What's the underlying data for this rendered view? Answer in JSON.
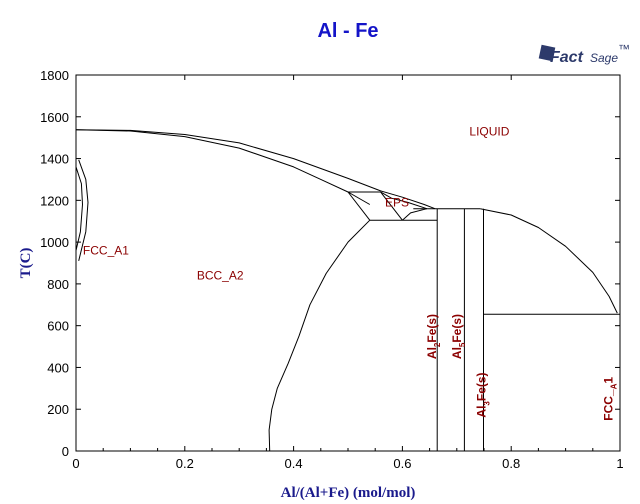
{
  "chart_data": {
    "type": "line",
    "title": "Al - Fe",
    "xlabel": "Al/(Al+Fe) (mol/mol)",
    "ylabel": "T(C)",
    "xlim": [
      0,
      1
    ],
    "ylim": [
      0,
      1800
    ],
    "x_ticks": [
      0,
      0.2,
      0.4,
      0.6,
      0.8,
      1
    ],
    "x_tick_labels": [
      "0",
      "0.2",
      "0.4",
      "0.6",
      "0.8",
      "1"
    ],
    "y_ticks": [
      0,
      200,
      400,
      600,
      800,
      1000,
      1200,
      1400,
      1600,
      1800
    ],
    "y_tick_labels": [
      "0",
      "200",
      "400",
      "600",
      "800",
      "1000",
      "1200",
      "1400",
      "1600",
      "1800"
    ],
    "grid": false,
    "line_color": "#000000",
    "label_color": "#8b0000",
    "region_labels": [
      {
        "text": "LIQUID",
        "x": 0.76,
        "y": 1510
      },
      {
        "text": "FCC_A1",
        "x": 0.055,
        "y": 940
      },
      {
        "text": "BCC_A2",
        "x": 0.265,
        "y": 820
      },
      {
        "text": "EPS",
        "x": 0.59,
        "y": 1170
      }
    ],
    "phase_labels": [
      {
        "main": "Al",
        "sub": "2",
        "tail": "Fe(s)",
        "x": 0.662,
        "y": 440
      },
      {
        "main": "Al",
        "sub": "5",
        "tail": "Fe(s)",
        "x": 0.708,
        "y": 440
      },
      {
        "main": "Al",
        "sub": "3",
        "tail": "Fe(s)",
        "x": 0.753,
        "y": 160
      },
      {
        "main": "FCC_",
        "sub": "A",
        "tail": "1",
        "x": 0.986,
        "y": 145
      }
    ],
    "series": [
      {
        "points": [
          [
            0,
            1538
          ],
          [
            0.1,
            1535
          ],
          [
            0.2,
            1515
          ],
          [
            0.3,
            1475
          ],
          [
            0.4,
            1400
          ],
          [
            0.5,
            1305
          ],
          [
            0.56,
            1245
          ],
          [
            0.6,
            1215
          ],
          [
            0.64,
            1180
          ],
          [
            0.66,
            1160
          ]
        ]
      },
      {
        "points": [
          [
            0,
            1538
          ],
          [
            0.1,
            1532
          ],
          [
            0.2,
            1505
          ],
          [
            0.3,
            1450
          ],
          [
            0.4,
            1360
          ],
          [
            0.45,
            1300
          ],
          [
            0.5,
            1240
          ],
          [
            0.54,
            1180
          ]
        ]
      },
      {
        "points": [
          [
            0.005,
            1394
          ],
          [
            0.018,
            1300
          ],
          [
            0.022,
            1190
          ],
          [
            0.018,
            1050
          ],
          [
            0.005,
            910
          ]
        ]
      },
      {
        "points": [
          [
            0,
            1360
          ],
          [
            0.01,
            1280
          ],
          [
            0.012,
            1180
          ],
          [
            0.008,
            1050
          ],
          [
            0,
            960
          ]
        ]
      },
      {
        "points": [
          [
            0.5,
            1240
          ],
          [
            0.56,
            1240
          ]
        ]
      },
      {
        "points": [
          [
            0.5,
            1240
          ],
          [
            0.54,
            1105
          ]
        ]
      },
      {
        "points": [
          [
            0.56,
            1240
          ],
          [
            0.58,
            1210
          ],
          [
            0.61,
            1190
          ],
          [
            0.645,
            1160
          ]
        ]
      },
      {
        "points": [
          [
            0.56,
            1240
          ],
          [
            0.6,
            1105
          ]
        ]
      },
      {
        "points": [
          [
            0.6,
            1105
          ],
          [
            0.615,
            1140
          ],
          [
            0.645,
            1160
          ]
        ]
      },
      {
        "points": [
          [
            0.54,
            1105
          ],
          [
            0.664,
            1105
          ]
        ]
      },
      {
        "points": [
          [
            0.62,
            1160
          ],
          [
            0.743,
            1160
          ]
        ]
      },
      {
        "points": [
          [
            0.664,
            1160
          ],
          [
            0.664,
            0
          ]
        ]
      },
      {
        "points": [
          [
            0.714,
            1160
          ],
          [
            0.714,
            0
          ]
        ]
      },
      {
        "points": [
          [
            0.749,
            1160
          ],
          [
            0.749,
            0
          ]
        ]
      },
      {
        "points": [
          [
            0.749,
            655
          ],
          [
            1,
            655
          ]
        ]
      },
      {
        "points": [
          [
            0.743,
            1160
          ],
          [
            0.8,
            1130
          ],
          [
            0.85,
            1070
          ],
          [
            0.9,
            980
          ],
          [
            0.95,
            855
          ],
          [
            0.98,
            740
          ],
          [
            0.995,
            660
          ]
        ]
      },
      {
        "points": [
          [
            0.54,
            1105
          ],
          [
            0.5,
            1000
          ],
          [
            0.46,
            850
          ],
          [
            0.43,
            700
          ],
          [
            0.41,
            550
          ],
          [
            0.39,
            420
          ],
          [
            0.37,
            300
          ],
          [
            0.36,
            200
          ],
          [
            0.355,
            100
          ],
          [
            0.356,
            0
          ]
        ]
      }
    ]
  },
  "logo": {
    "part1": "Fact",
    "part2": "Sage",
    "tm": "™"
  }
}
